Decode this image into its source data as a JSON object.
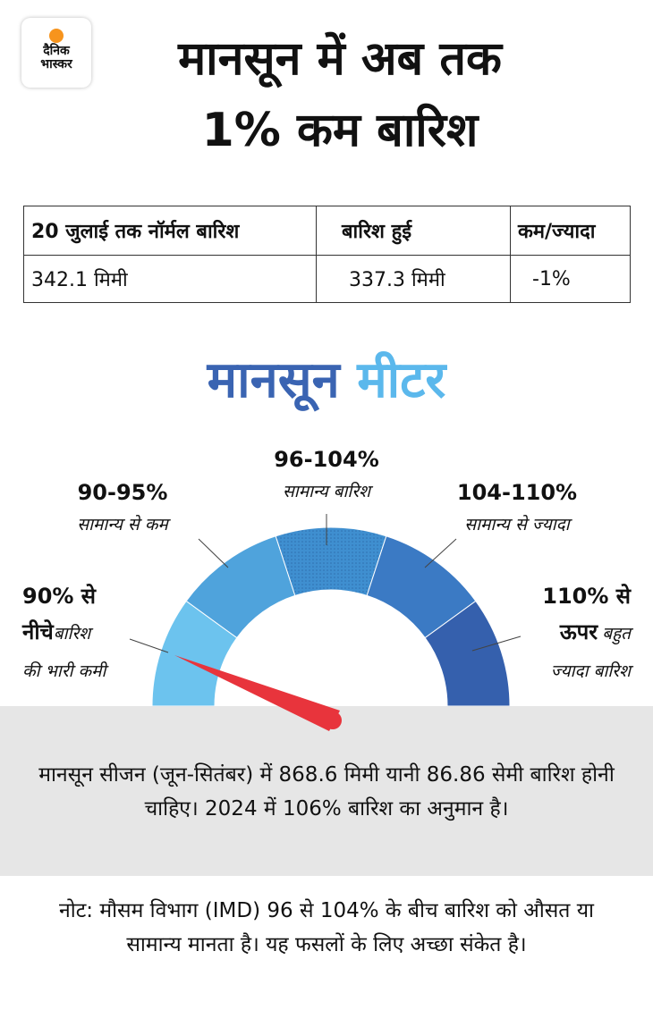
{
  "logo": {
    "line1": "दैनिक",
    "line2": "भास्कर"
  },
  "title": {
    "line1": "मानसून में अब तक",
    "line2": "1% कम बारिश"
  },
  "table": {
    "header": [
      "20 जुलाई तक नॉर्मल बारिश",
      "बारिश हुई",
      "कम/ज्यादा"
    ],
    "rows": [
      [
        "342.1 मिमी",
        "337.3 मिमी",
        "-1%"
      ]
    ]
  },
  "meter": {
    "title": {
      "part1": "मानसून",
      "part2": "मीटर"
    },
    "segments": [
      {
        "range": "90% से",
        "range2": "नीचे",
        "desc": "बारिश",
        "desc2": "की भारी कमी"
      },
      {
        "range": "90-95%",
        "desc": "सामान्य से कम"
      },
      {
        "range": "96-104%",
        "desc": "सामान्य बारिश"
      },
      {
        "range": "104-110%",
        "desc": "सामान्य से ज्यादा"
      },
      {
        "range": "110% से",
        "range2": "ऊपर",
        "desc": "बहुत",
        "desc2": "ज्यादा बारिश"
      }
    ]
  },
  "forecast": "मानसून सीजन (जून-सितंबर) में 868.6 मिमी यानी 86.86 सेमी बारिश होनी चाहिए। 2024 में 106% बारिश का अनुमान है।",
  "note": "नोट: मौसम विभाग (IMD) 96 से 104% के बीच बारिश को औसत या सामान्य मानता है। यह फसलों के लिए अच्छा संकेत है।"
}
